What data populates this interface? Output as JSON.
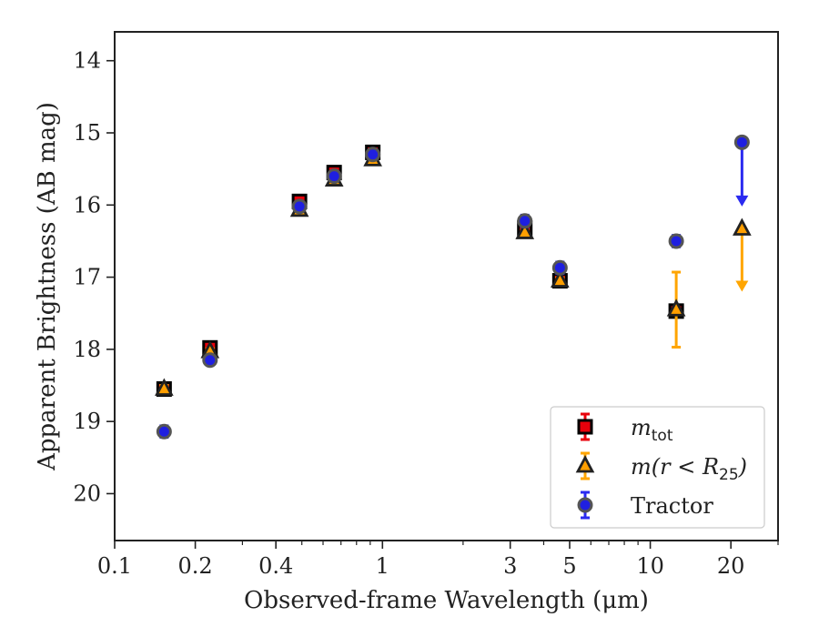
{
  "chart_data": {
    "type": "scatter",
    "title": "",
    "xlabel": "Observed-frame Wavelength (μm)",
    "ylabel": "Apparent Brightness (AB mag)",
    "xscale": "log",
    "xlim": [
      0.1,
      30
    ],
    "ylim": [
      20.65,
      13.6
    ],
    "y_inverted": true,
    "xticks": [
      0.1,
      0.2,
      0.4,
      1,
      3,
      5,
      10,
      20
    ],
    "xtick_labels": [
      "0.1",
      "0.2",
      "0.4",
      "1",
      "3",
      "5",
      "10",
      "20"
    ],
    "yticks": [
      14,
      15,
      16,
      17,
      18,
      19,
      20
    ],
    "ytick_labels": [
      "14",
      "15",
      "16",
      "17",
      "18",
      "19",
      "20"
    ],
    "grid": false,
    "legend_position": "bottom-right",
    "series": [
      {
        "name": "m_tot",
        "legend_parts": [
          "m",
          "tot",
          ""
        ],
        "marker": "square",
        "color": "#e8000b",
        "edge": "#000000",
        "err_color": "#e8000b",
        "points": [
          {
            "x": 0.153,
            "y": 18.55,
            "err": 0.05
          },
          {
            "x": 0.227,
            "y": 17.98,
            "err": 0.04
          },
          {
            "x": 0.49,
            "y": 15.95,
            "err": 0.02
          },
          {
            "x": 0.66,
            "y": 15.55,
            "err": 0.02
          },
          {
            "x": 0.92,
            "y": 15.27,
            "err": 0.02
          },
          {
            "x": 3.4,
            "y": 16.32,
            "err": 0.03
          },
          {
            "x": 4.6,
            "y": 17.05,
            "err": 0.04
          },
          {
            "x": 12.5,
            "y": 17.47,
            "err": 0.05
          }
        ]
      },
      {
        "name": "m(r < R25)",
        "legend_parts": [
          "m(r < R",
          "25",
          ")"
        ],
        "marker": "triangle",
        "color": "#ff9f00",
        "edge": "#222222",
        "err_color": "#ffa500",
        "points": [
          {
            "x": 0.153,
            "y": 18.55,
            "err": 0.05
          },
          {
            "x": 0.227,
            "y": 18.03,
            "err": 0.04
          },
          {
            "x": 0.49,
            "y": 16.07,
            "err": 0.02
          },
          {
            "x": 0.66,
            "y": 15.65,
            "err": 0.02
          },
          {
            "x": 0.92,
            "y": 15.37,
            "err": 0.02
          },
          {
            "x": 3.4,
            "y": 16.38,
            "err": 0.03
          },
          {
            "x": 4.6,
            "y": 17.05,
            "err": 0.04
          },
          {
            "x": 12.5,
            "y": 17.45,
            "err": 0.52
          },
          {
            "x": 22.0,
            "y": 16.33,
            "upper_limit_to": 17.15
          }
        ]
      },
      {
        "name": "Tractor",
        "legend_parts": [
          "Tractor",
          "",
          ""
        ],
        "marker": "circle",
        "color": "#1f1fe0",
        "edge": "#555555",
        "err_color": "#2a2af0",
        "points": [
          {
            "x": 0.153,
            "y": 19.14,
            "err": 0.08
          },
          {
            "x": 0.227,
            "y": 18.15,
            "err": 0.06
          },
          {
            "x": 0.49,
            "y": 16.02,
            "err": 0.03
          },
          {
            "x": 0.66,
            "y": 15.6,
            "err": 0.03
          },
          {
            "x": 0.92,
            "y": 15.3,
            "err": 0.03
          },
          {
            "x": 3.4,
            "y": 16.22,
            "err": 0.08
          },
          {
            "x": 4.6,
            "y": 16.87,
            "err": 0.08
          },
          {
            "x": 12.5,
            "y": 16.5,
            "err": 0.08
          },
          {
            "x": 22.0,
            "y": 15.13,
            "upper_limit_to": 15.97
          }
        ]
      }
    ]
  }
}
